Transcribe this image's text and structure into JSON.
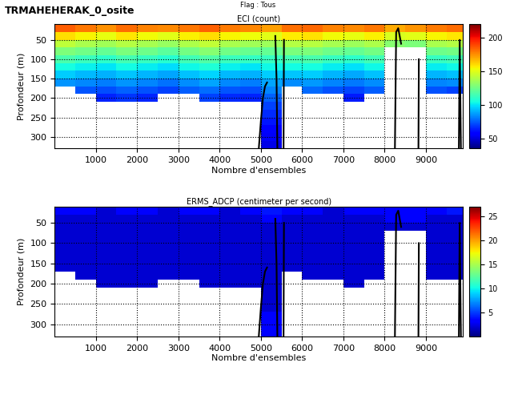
{
  "header": {
    "name": "TRMAHEHERAK_0_osite",
    "flag": "Flag : Tous"
  },
  "chart_data": [
    {
      "type": "heatmap",
      "title": "ECI (count)",
      "x_label": "Nombre d'ensembles",
      "y_label": "Profondeur (m)",
      "xlim": [
        1,
        9900
      ],
      "xticks": [
        1000,
        2000,
        3000,
        4000,
        5000,
        6000,
        7000,
        8000,
        9000
      ],
      "ylim": [
        330,
        10
      ],
      "yticks": [
        50,
        100,
        150,
        200,
        250,
        300
      ],
      "grid": true,
      "x": [
        250,
        750,
        1250,
        1750,
        2250,
        2750,
        3250,
        3750,
        4250,
        4750,
        5250,
        5750,
        6250,
        6750,
        7250,
        7750,
        8250,
        8750,
        9250,
        9750
      ],
      "y": [
        20,
        40,
        60,
        80,
        100,
        120,
        140,
        160,
        180,
        200,
        220,
        240,
        260,
        280,
        300,
        320
      ],
      "cells": [
        [
          185,
          180,
          175,
          182,
          178,
          176,
          180,
          184,
          179,
          177,
          172,
          181,
          183,
          178,
          176,
          180,
          170,
          174,
          179,
          182
        ],
        [
          160,
          155,
          152,
          158,
          154,
          150,
          156,
          160,
          155,
          153,
          150,
          157,
          159,
          154,
          152,
          156,
          148,
          150,
          155,
          158
        ],
        [
          142,
          138,
          136,
          140,
          137,
          134,
          139,
          143,
          138,
          136,
          135,
          140,
          141,
          137,
          135,
          139,
          130,
          128,
          138,
          140
        ],
        [
          128,
          125,
          122,
          127,
          124,
          120,
          126,
          130,
          125,
          123,
          122,
          127,
          128,
          124,
          122,
          126,
          null,
          null,
          124,
          126
        ],
        [
          116,
          113,
          110,
          115,
          112,
          108,
          114,
          118,
          113,
          111,
          112,
          115,
          116,
          112,
          110,
          114,
          null,
          null,
          112,
          114
        ],
        [
          105,
          102,
          100,
          104,
          101,
          98,
          103,
          107,
          102,
          100,
          103,
          104,
          105,
          101,
          99,
          103,
          null,
          null,
          101,
          103
        ],
        [
          95,
          92,
          90,
          94,
          91,
          88,
          93,
          97,
          92,
          90,
          95,
          94,
          95,
          91,
          89,
          93,
          null,
          null,
          91,
          93
        ],
        [
          85,
          83,
          81,
          85,
          82,
          79,
          84,
          88,
          83,
          81,
          88,
          84,
          86,
          82,
          80,
          84,
          null,
          null,
          82,
          84
        ],
        [
          null,
          74,
          72,
          76,
          73,
          70,
          75,
          78,
          74,
          72,
          82,
          null,
          77,
          73,
          71,
          75,
          null,
          null,
          73,
          70
        ],
        [
          null,
          null,
          64,
          68,
          65,
          null,
          null,
          70,
          66,
          64,
          76,
          null,
          null,
          null,
          63,
          null,
          null,
          null,
          null,
          null
        ],
        [
          null,
          null,
          null,
          null,
          null,
          null,
          null,
          null,
          null,
          null,
          70,
          null,
          null,
          null,
          null,
          null,
          null,
          null,
          null,
          null
        ],
        [
          null,
          null,
          null,
          null,
          null,
          null,
          null,
          null,
          null,
          null,
          66,
          null,
          null,
          null,
          null,
          null,
          null,
          null,
          null,
          null
        ],
        [
          null,
          null,
          null,
          null,
          null,
          null,
          null,
          null,
          null,
          null,
          62,
          null,
          null,
          null,
          null,
          null,
          null,
          null,
          null,
          null
        ],
        [
          null,
          null,
          null,
          null,
          null,
          null,
          null,
          null,
          null,
          null,
          58,
          null,
          null,
          null,
          null,
          null,
          null,
          null,
          null,
          null
        ],
        [
          null,
          null,
          null,
          null,
          null,
          null,
          null,
          null,
          null,
          null,
          55,
          null,
          null,
          null,
          null,
          null,
          null,
          null,
          null,
          null
        ],
        [
          null,
          null,
          null,
          null,
          null,
          null,
          null,
          null,
          null,
          null,
          52,
          null,
          null,
          null,
          null,
          null,
          null,
          null,
          null,
          null
        ]
      ],
      "colorbar": {
        "range": [
          35,
          220
        ],
        "ticks": [
          50,
          100,
          150,
          200
        ]
      },
      "line": {
        "color": "black",
        "x": [
          4950,
          5000,
          5050,
          5100,
          5150,
          null,
          5350,
          5380,
          5400,
          null,
          5550,
          5560,
          null,
          8250,
          8280,
          8330,
          8400,
          null,
          8820,
          8830,
          null,
          9800,
          9820,
          9850
        ],
        "y": [
          330,
          260,
          200,
          170,
          160,
          null,
          40,
          150,
          330,
          null,
          330,
          50,
          null,
          330,
          30,
          20,
          60,
          null,
          330,
          100,
          null,
          330,
          50,
          330
        ]
      }
    },
    {
      "type": "heatmap",
      "title": "ERMS_ADCP (centimeter per second)",
      "x_label": "Nombre d'ensembles",
      "y_label": "Profondeur (m)",
      "xlim": [
        1,
        9900
      ],
      "xticks": [
        1000,
        2000,
        3000,
        4000,
        5000,
        6000,
        7000,
        8000,
        9000
      ],
      "ylim": [
        330,
        10
      ],
      "yticks": [
        50,
        100,
        150,
        200,
        250,
        300
      ],
      "grid": true,
      "x": [
        250,
        750,
        1250,
        1750,
        2250,
        2750,
        3250,
        3750,
        4250,
        4750,
        5250,
        5750,
        6250,
        6750,
        7250,
        7750,
        8250,
        8750,
        9250,
        9750
      ],
      "y": [
        20,
        40,
        60,
        80,
        100,
        120,
        140,
        160,
        180,
        200,
        220,
        240,
        260,
        280,
        300,
        320
      ],
      "cells": [
        [
          3,
          3,
          2,
          3,
          3,
          2,
          3,
          3,
          2,
          3,
          4,
          3,
          3,
          2,
          3,
          3,
          3,
          3,
          3,
          4
        ],
        [
          2,
          2,
          2,
          2,
          2,
          2,
          2,
          2,
          2,
          2,
          3,
          2,
          2,
          2,
          2,
          2,
          3,
          3,
          2,
          2
        ],
        [
          2,
          2,
          2,
          2,
          2,
          2,
          2,
          2,
          2,
          2,
          2,
          2,
          2,
          2,
          2,
          2,
          2,
          2,
          2,
          2
        ],
        [
          2,
          2,
          2,
          2,
          2,
          2,
          2,
          2,
          2,
          2,
          2,
          2,
          2,
          2,
          2,
          2,
          null,
          null,
          2,
          2
        ],
        [
          2,
          2,
          2,
          2,
          2,
          2,
          2,
          2,
          2,
          2,
          2,
          2,
          2,
          2,
          2,
          2,
          null,
          null,
          2,
          2
        ],
        [
          2,
          2,
          2,
          2,
          2,
          2,
          2,
          2,
          2,
          2,
          2,
          2,
          2,
          2,
          2,
          2,
          null,
          null,
          2,
          2
        ],
        [
          2,
          2,
          2,
          2,
          2,
          2,
          2,
          2,
          2,
          2,
          2,
          2,
          2,
          2,
          2,
          2,
          null,
          null,
          2,
          2
        ],
        [
          2,
          2,
          2,
          2,
          2,
          2,
          2,
          2,
          2,
          2,
          2,
          2,
          2,
          2,
          2,
          2,
          null,
          null,
          2,
          2
        ],
        [
          null,
          2,
          2,
          2,
          2,
          2,
          2,
          2,
          2,
          2,
          2,
          null,
          2,
          2,
          2,
          2,
          null,
          null,
          2,
          2
        ],
        [
          null,
          null,
          2,
          2,
          2,
          null,
          null,
          2,
          2,
          2,
          2,
          null,
          null,
          null,
          2,
          null,
          null,
          null,
          null,
          null
        ],
        [
          null,
          null,
          null,
          null,
          null,
          null,
          null,
          null,
          null,
          null,
          2,
          null,
          null,
          null,
          null,
          null,
          null,
          null,
          null,
          null
        ],
        [
          null,
          null,
          null,
          null,
          null,
          null,
          null,
          null,
          null,
          null,
          2,
          null,
          null,
          null,
          null,
          null,
          null,
          null,
          null,
          null
        ],
        [
          null,
          null,
          null,
          null,
          null,
          null,
          null,
          null,
          null,
          null,
          2,
          null,
          null,
          null,
          null,
          null,
          null,
          null,
          null,
          null
        ],
        [
          null,
          null,
          null,
          null,
          null,
          null,
          null,
          null,
          null,
          null,
          3,
          null,
          null,
          null,
          null,
          null,
          null,
          null,
          null,
          null
        ],
        [
          null,
          null,
          null,
          null,
          null,
          null,
          null,
          null,
          null,
          null,
          3,
          null,
          null,
          null,
          null,
          null,
          null,
          null,
          null,
          null
        ],
        [
          null,
          null,
          null,
          null,
          null,
          null,
          null,
          null,
          null,
          null,
          3,
          null,
          null,
          null,
          null,
          null,
          null,
          null,
          null,
          null
        ]
      ],
      "colorbar": {
        "range": [
          0,
          27
        ],
        "ticks": [
          5,
          10,
          15,
          20,
          25
        ]
      },
      "line": {
        "color": "black",
        "x": [
          4950,
          5000,
          5050,
          5100,
          5150,
          null,
          5350,
          5380,
          5400,
          null,
          5550,
          5560,
          null,
          8250,
          8280,
          8330,
          8400,
          null,
          8820,
          8830,
          null,
          9800,
          9820,
          9850
        ],
        "y": [
          330,
          260,
          200,
          170,
          160,
          null,
          40,
          150,
          330,
          null,
          330,
          50,
          null,
          330,
          30,
          20,
          60,
          null,
          330,
          100,
          null,
          330,
          50,
          330
        ]
      }
    }
  ]
}
